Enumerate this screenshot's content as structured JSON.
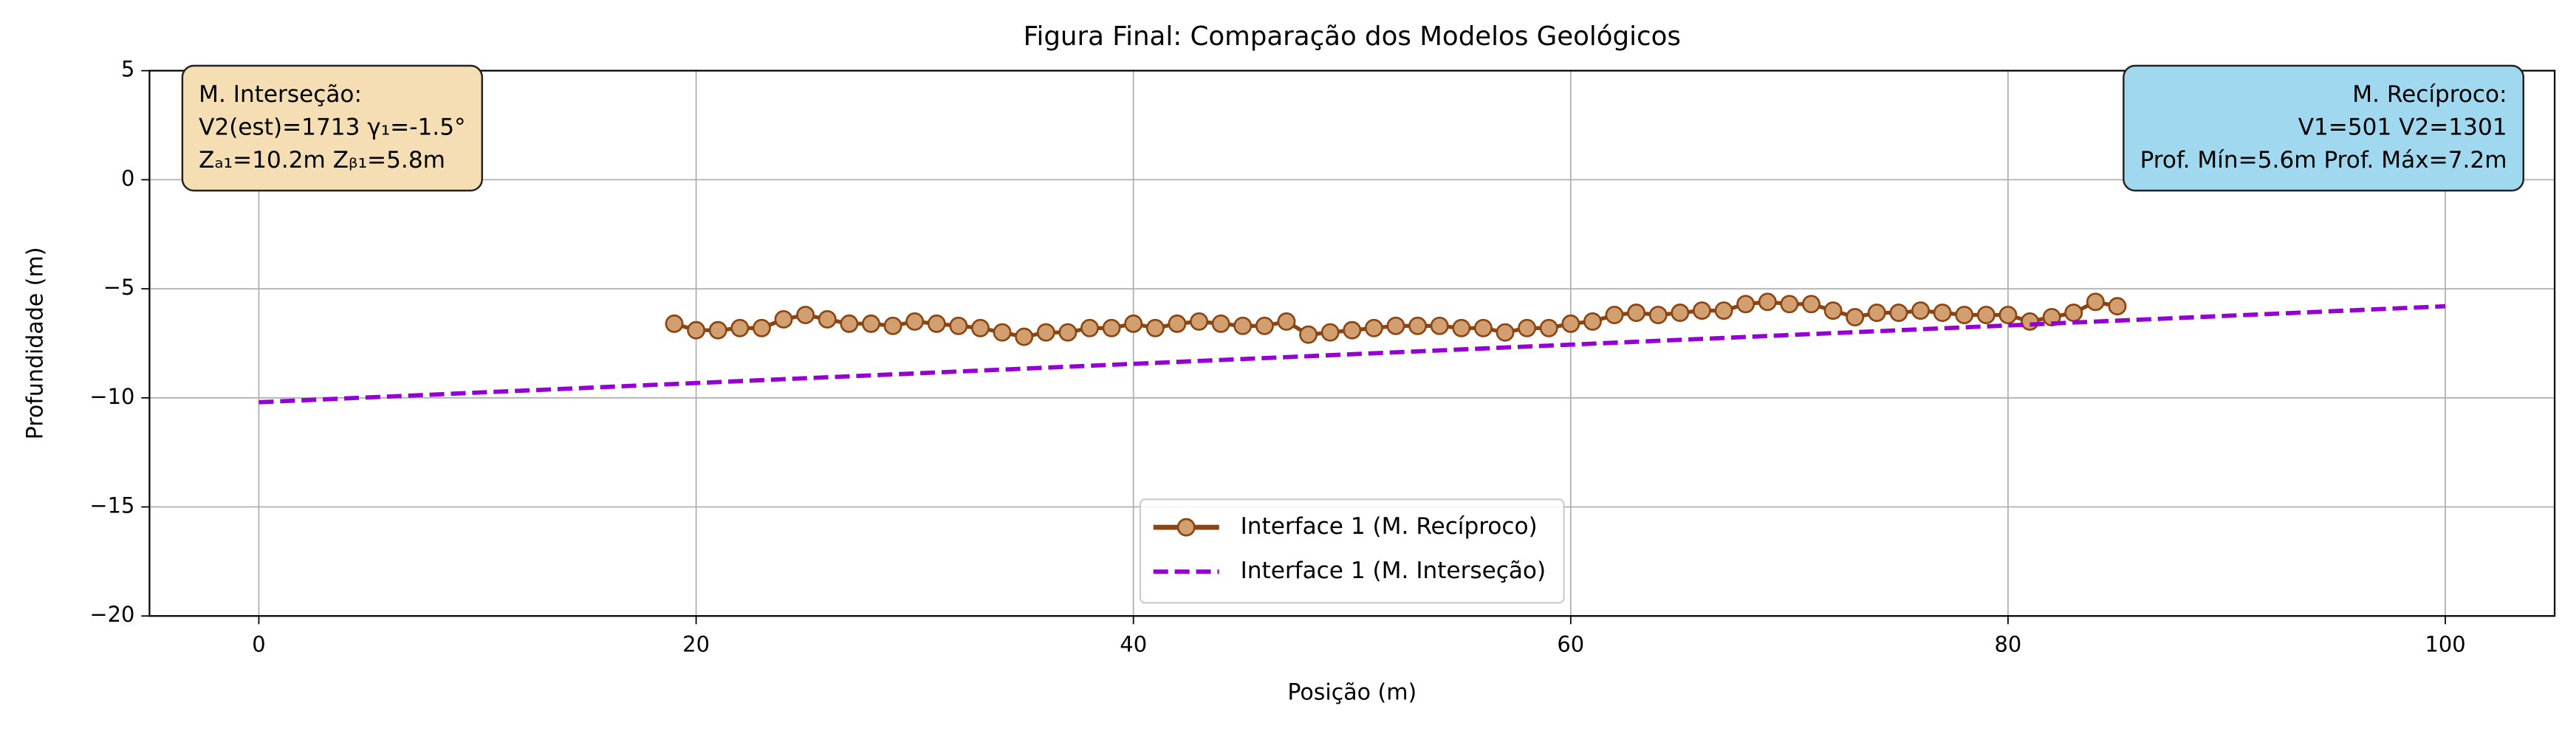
{
  "chart_data": {
    "type": "line",
    "title": "Figura Final: Comparação dos Modelos Geológicos",
    "x_label": "Posição (m)",
    "y_label": "Profundidade (m)",
    "xlim": [
      -5,
      105
    ],
    "ylim": [
      -20,
      5
    ],
    "xticks": [
      0,
      20,
      40,
      60,
      80,
      100
    ],
    "yticks": [
      {
        "value": 5,
        "label": "5"
      },
      {
        "value": 0,
        "label": "0"
      },
      {
        "value": -5,
        "label": "−5"
      },
      {
        "value": -10,
        "label": "−10"
      },
      {
        "value": -15,
        "label": "−15"
      },
      {
        "value": -20,
        "label": "−20"
      }
    ],
    "grid": true,
    "legend": "lower center",
    "series": [
      {
        "name": "Interface 1 (M. Recíproco)",
        "color": "#8b4513",
        "marker_fill": "#d2a070",
        "style": "solid-marker",
        "x": [
          19,
          20,
          21,
          22,
          23,
          24,
          25,
          26,
          27,
          28,
          29,
          30,
          31,
          32,
          33,
          34,
          35,
          36,
          37,
          38,
          39,
          40,
          41,
          42,
          43,
          44,
          45,
          46,
          47,
          48,
          49,
          50,
          51,
          52,
          53,
          54,
          55,
          56,
          57,
          58,
          59,
          60,
          61,
          62,
          63,
          64,
          65,
          66,
          67,
          68,
          69,
          70,
          71,
          72,
          73,
          74,
          75,
          76,
          77,
          78,
          79,
          80,
          81,
          82,
          83,
          84,
          85
        ],
        "values": [
          -6.6,
          -6.9,
          -6.9,
          -6.8,
          -6.8,
          -6.4,
          -6.2,
          -6.4,
          -6.6,
          -6.6,
          -6.7,
          -6.5,
          -6.6,
          -6.7,
          -6.8,
          -7.0,
          -7.2,
          -7.0,
          -7.0,
          -6.8,
          -6.8,
          -6.6,
          -6.8,
          -6.6,
          -6.5,
          -6.6,
          -6.7,
          -6.7,
          -6.5,
          -7.1,
          -7.0,
          -6.9,
          -6.8,
          -6.7,
          -6.7,
          -6.7,
          -6.8,
          -6.8,
          -7.0,
          -6.8,
          -6.8,
          -6.6,
          -6.5,
          -6.2,
          -6.1,
          -6.2,
          -6.1,
          -6.0,
          -6.0,
          -5.7,
          -5.6,
          -5.7,
          -5.7,
          -6.0,
          -6.3,
          -6.1,
          -6.1,
          -6.0,
          -6.1,
          -6.2,
          -6.2,
          -6.2,
          -6.5,
          -6.3,
          -6.1,
          -5.6,
          -5.8
        ]
      },
      {
        "name": "Interface 1 (M. Interseção)",
        "color": "#9400d3",
        "style": "dashed",
        "x": [
          0,
          100
        ],
        "values": [
          -10.2,
          -5.8
        ]
      }
    ],
    "annotations": [
      {
        "corner": "upper left",
        "color": "#f5deb3",
        "lines": [
          "M. Interseção:",
          "V2(est)=1713 γ₁=-1.5°",
          "Zₐ₁=10.2m Zᵦ₁=5.8m"
        ]
      },
      {
        "corner": "upper right",
        "color": "#a0d8ef",
        "lines": [
          "M. Recíproco:",
          "V1=501 V2=1301",
          "Prof. Mín=5.6m Prof. Máx=7.2m"
        ]
      }
    ]
  }
}
